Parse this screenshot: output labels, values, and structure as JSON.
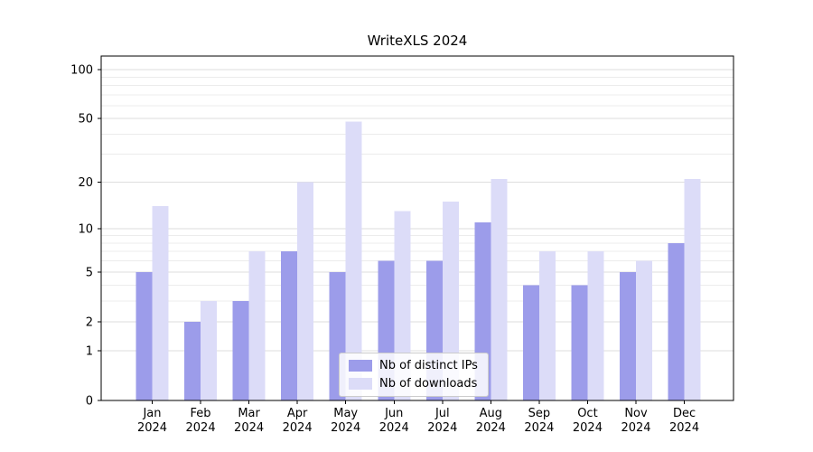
{
  "chart_data": {
    "type": "bar",
    "title": "WriteXLS 2024",
    "categories": [
      "Jan",
      "Feb",
      "Mar",
      "Apr",
      "May",
      "Jun",
      "Jul",
      "Aug",
      "Sep",
      "Oct",
      "Nov",
      "Dec"
    ],
    "year": "2024",
    "series": [
      {
        "name": "Nb of distinct IPs",
        "color": "#9c9cea",
        "values": [
          5,
          2,
          3,
          7,
          5,
          6,
          6,
          11,
          4,
          4,
          5,
          8
        ]
      },
      {
        "name": "Nb of downloads",
        "color": "#dcdcf8",
        "values": [
          14,
          3,
          7,
          20,
          48,
          13,
          15,
          21,
          7,
          7,
          6,
          21
        ]
      }
    ],
    "yticks": [
      0,
      1,
      2,
      5,
      10,
      20,
      50,
      100
    ],
    "minor_gridlines": [
      3,
      4,
      6,
      7,
      8,
      9,
      30,
      40,
      60,
      70,
      80,
      90
    ],
    "scale": "log1p",
    "ylim": [
      0,
      120
    ],
    "xlabel": "",
    "ylabel": "",
    "grid": "horizontal",
    "legend_position": "lower-center-inside"
  },
  "colors": {
    "axis": "#000000",
    "tick_label": "#000000",
    "grid_major": "#dedede",
    "grid_minor": "#ececec",
    "background": "#ffffff"
  }
}
